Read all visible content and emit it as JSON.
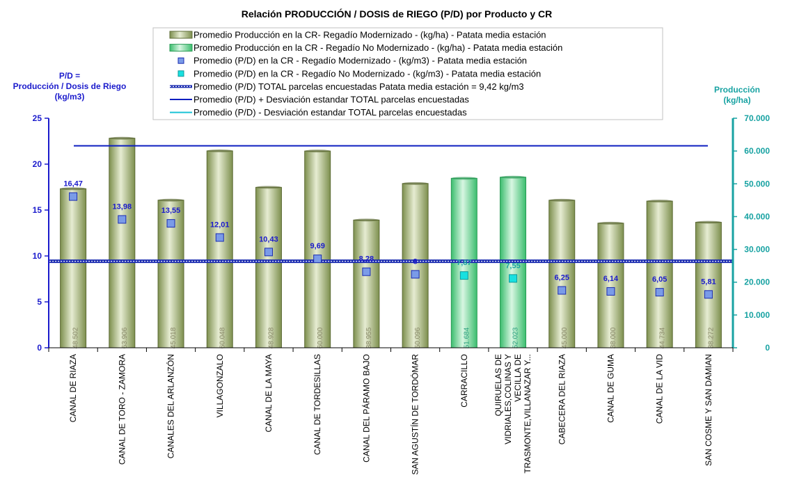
{
  "chart_data": {
    "type": "bar",
    "title": "Relación PRODUCCIÓN / DOSIS de RIEGO (P/D) por Producto y CR",
    "ylabel_left": [
      "P/D =",
      "Producción / Dosis  de Riego",
      "(kg/m3)"
    ],
    "ylabel_right": [
      "Producción",
      "(kg/ha)"
    ],
    "ylim_left": [
      0,
      25
    ],
    "yticks_left": [
      0,
      5,
      10,
      15,
      20,
      25
    ],
    "ylim_right": [
      0,
      70000
    ],
    "yticks_right": [
      "0",
      "10.000",
      "20.000",
      "30.000",
      "40.000",
      "50.000",
      "60.000",
      "70.000"
    ],
    "categories": [
      [
        "CANAL DE RIAZA"
      ],
      [
        "CANAL DE TORO - ZAMORA"
      ],
      [
        "CANALES DEL ARLANZÓN"
      ],
      [
        "VILLAGONZALO"
      ],
      [
        "CANAL DE LA MAYA"
      ],
      [
        "CANAL DE TORDESILLAS"
      ],
      [
        "CANAL DEL PÁRAMO BAJO"
      ],
      [
        "SAN AGUSTÍN DE TORDÓMAR"
      ],
      [
        "CARRACILLO"
      ],
      [
        "QUIRUELAS DE",
        "VIDRIALES,COLINAS Y",
        "VECILLA DE",
        "TRASMONTE,VILLANAZAR Y..."
      ],
      [
        "CABECERA DEL RIAZA"
      ],
      [
        "CANAL DE GUMA"
      ],
      [
        "CANAL DE LA VID"
      ],
      [
        "SAN COSME Y SAN DAMIAN"
      ]
    ],
    "series": [
      {
        "name": "Promedio Producción en la CR- Regadío Modernizado -  (kg/ha) - Patata media estación",
        "axis": "right",
        "values": [
          48502,
          63906,
          45018,
          60048,
          48928,
          60000,
          38955,
          50096,
          null,
          null,
          45000,
          38000,
          44734,
          38272
        ],
        "labels": [
          "48.502",
          "63.906",
          "45.018",
          "60.048",
          "48.928",
          "60.000",
          "38.955",
          "50.096",
          null,
          null,
          "45.000",
          "38.000",
          "44.734",
          "38.272"
        ]
      },
      {
        "name": "Promedio Producción en la CR - Regadío No Modernizado -  (kg/ha) - Patata media estación",
        "axis": "right",
        "values": [
          null,
          null,
          null,
          null,
          null,
          null,
          null,
          null,
          51684,
          52023,
          null,
          null,
          null,
          null
        ],
        "labels": [
          null,
          null,
          null,
          null,
          null,
          null,
          null,
          null,
          "51.684",
          "52.023",
          null,
          null,
          null,
          null
        ]
      },
      {
        "name": "Promedio (P/D) en la CR - Regadío Modernizado - (kg/m3) - Patata media estación",
        "axis": "left",
        "values": [
          16.47,
          13.98,
          13.55,
          12.01,
          10.43,
          9.69,
          8.28,
          8,
          null,
          null,
          6.25,
          6.14,
          6.05,
          5.81
        ],
        "labels": [
          "16,47",
          "13,98",
          "13,55",
          "12,01",
          "10,43",
          "9,69",
          "8,28",
          "8",
          null,
          null,
          "6,25",
          "6,14",
          "6,05",
          "5,81"
        ]
      },
      {
        "name": "Promedio (P/D) en la CR - Regadío No Modernizado - (kg/m3) - Patata media estación",
        "axis": "left",
        "values": [
          null,
          null,
          null,
          null,
          null,
          null,
          null,
          null,
          7.87,
          7.55,
          null,
          null,
          null,
          null
        ],
        "labels": [
          null,
          null,
          null,
          null,
          null,
          null,
          null,
          null,
          "7,87",
          "7,55",
          null,
          null,
          null,
          null
        ]
      }
    ],
    "reference_lines": [
      {
        "name": "Promedio (P/D) TOTAL parcelas encuestadas Patata media estación = 9,42 kg/m3",
        "axis": "left",
        "value": 9.42
      },
      {
        "name": "Promedio (P/D) + Desviación estandar TOTAL parcelas encuestadas",
        "axis": "left",
        "value": 22.0
      },
      {
        "name": "Promedio (P/D) - Desviación estandar TOTAL parcelas encuestadas",
        "axis": "left",
        "value": null
      }
    ],
    "legend_position": "top-center",
    "grid": false
  },
  "colors": {
    "bar_modernizado": "#9cae6a",
    "bar_no_modernizado": "#5fd28a",
    "marker_modernizado": "#7a9be8",
    "marker_no_modernizado": "#18e0e0",
    "mean_line": "#1a2bb0",
    "plus_sd_line": "#0c1ec0",
    "minus_sd_line": "#19c3d6",
    "left_axis": "#1a1acc",
    "right_axis": "#17a2a2"
  }
}
